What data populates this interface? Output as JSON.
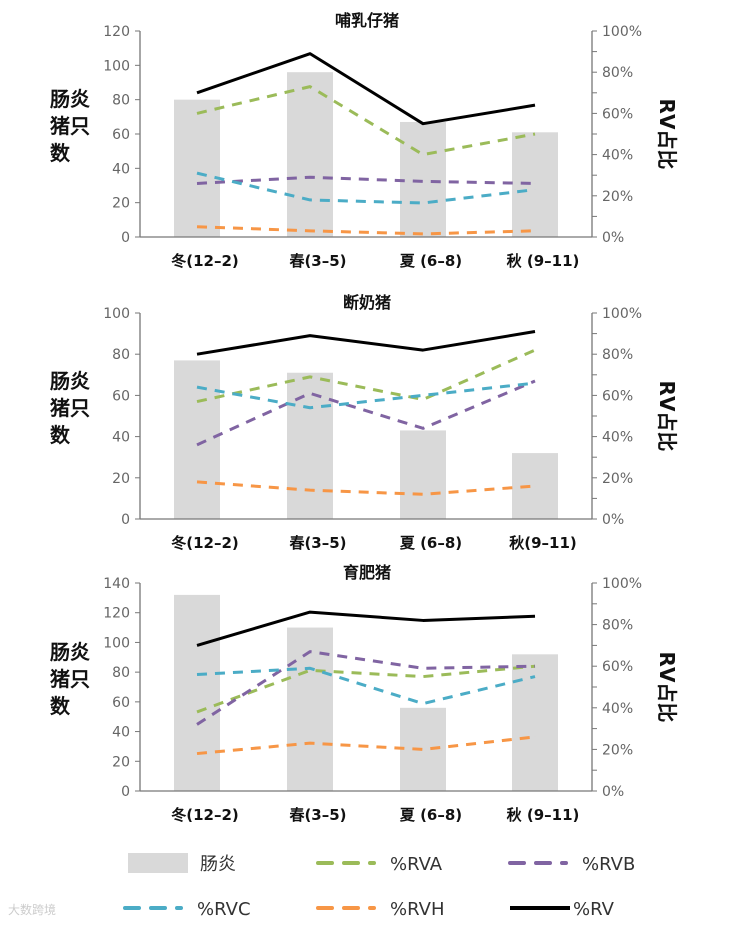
{
  "colors": {
    "bar": "#d9d9d9",
    "RVA": "#9bbb59",
    "RVB": "#8064a2",
    "RVC": "#4bacc6",
    "RVH": "#f79646",
    "RV": "#000000",
    "axis": "#777777"
  },
  "watermark": "大数跨境",
  "legend": [
    {
      "key": "bar",
      "label": "肠炎",
      "style": "bar"
    },
    {
      "key": "RVA",
      "label": "%RVA",
      "style": "dash"
    },
    {
      "key": "RVB",
      "label": "%RVB",
      "style": "dash"
    },
    {
      "key": "RVC",
      "label": "%RVC",
      "style": "dash"
    },
    {
      "key": "RVH",
      "label": "%RVH",
      "style": "dash"
    },
    {
      "key": "RV",
      "label": "%RV",
      "style": "solid"
    }
  ],
  "chart_data": [
    {
      "type": "bar+line",
      "title": "哺乳仔猪",
      "ylabel_lines": [
        "肠炎",
        "猪只",
        "数"
      ],
      "y2label": "RV占比",
      "categories": [
        "冬(12–2)",
        "春(3–5)",
        "夏 (6–8)",
        "秋 (9–11)"
      ],
      "ylim": [
        0,
        120
      ],
      "yticks": [
        "0",
        "20",
        "40",
        "60",
        "80",
        "100",
        "120"
      ],
      "y2lim": [
        0,
        100
      ],
      "y2ticks": [
        "0%",
        "20%",
        "40%",
        "60%",
        "80%",
        "100%"
      ],
      "bars": {
        "name": "肠炎",
        "values": [
          80,
          96,
          67,
          61
        ]
      },
      "series": [
        {
          "name": "%RVA",
          "key": "RVA",
          "values": [
            60,
            73,
            40,
            50
          ]
        },
        {
          "name": "%RVB",
          "key": "RVB",
          "values": [
            26,
            29,
            27,
            26
          ]
        },
        {
          "name": "%RVC",
          "key": "RVC",
          "values": [
            31,
            18,
            16.5,
            23
          ]
        },
        {
          "name": "%RVH",
          "key": "RVH",
          "values": [
            5,
            3,
            1.5,
            3
          ]
        },
        {
          "name": "%RV",
          "key": "RV",
          "values": [
            70,
            89,
            55,
            64
          ]
        }
      ]
    },
    {
      "type": "bar+line",
      "title": "断奶猪",
      "ylabel_lines": [
        "肠炎",
        "猪只",
        "数"
      ],
      "y2label": "RV占比",
      "categories": [
        "冬(12–2)",
        "春(3–5)",
        "夏 (6–8)",
        "秋(9–11)"
      ],
      "ylim": [
        0,
        100
      ],
      "yticks": [
        "0",
        "20",
        "40",
        "60",
        "80",
        "100"
      ],
      "y2lim": [
        0,
        100
      ],
      "y2ticks": [
        "0%",
        "20%",
        "40%",
        "60%",
        "80%",
        "100%"
      ],
      "bars": {
        "name": "肠炎",
        "values": [
          77,
          71,
          43,
          32
        ]
      },
      "series": [
        {
          "name": "%RVA",
          "key": "RVA",
          "values": [
            57,
            69,
            58,
            82
          ]
        },
        {
          "name": "%RVB",
          "key": "RVB",
          "values": [
            36,
            61,
            44,
            67
          ]
        },
        {
          "name": "%RVC",
          "key": "RVC",
          "values": [
            64,
            54,
            60,
            66
          ]
        },
        {
          "name": "%RVH",
          "key": "RVH",
          "values": [
            18,
            14,
            12,
            16
          ]
        },
        {
          "name": "%RV",
          "key": "RV",
          "values": [
            80,
            89,
            82,
            91
          ]
        }
      ]
    },
    {
      "type": "bar+line",
      "title": "育肥猪",
      "ylabel_lines": [
        "肠炎",
        "猪只",
        "数"
      ],
      "y2label": "RV占比",
      "categories": [
        "冬(12–2)",
        "春(3–5)",
        "夏 (6–8)",
        "秋 (9–11)"
      ],
      "ylim": [
        0,
        140
      ],
      "yticks": [
        "0",
        "20",
        "40",
        "60",
        "80",
        "100",
        "120",
        "140"
      ],
      "y2lim": [
        0,
        100
      ],
      "y2ticks": [
        "0%",
        "20%",
        "40%",
        "60%",
        "80%",
        "100%"
      ],
      "bars": {
        "name": "肠炎",
        "values": [
          132,
          110,
          56,
          92
        ]
      },
      "series": [
        {
          "name": "%RVA",
          "key": "RVA",
          "values": [
            38,
            58,
            55,
            60
          ]
        },
        {
          "name": "%RVB",
          "key": "RVB",
          "values": [
            32,
            67,
            59,
            60
          ]
        },
        {
          "name": "%RVC",
          "key": "RVC",
          "values": [
            56,
            59,
            42,
            55
          ]
        },
        {
          "name": "%RVH",
          "key": "RVH",
          "values": [
            18,
            23,
            20,
            26
          ]
        },
        {
          "name": "%RV",
          "key": "RV",
          "values": [
            70,
            86,
            82,
            84
          ]
        }
      ]
    }
  ]
}
